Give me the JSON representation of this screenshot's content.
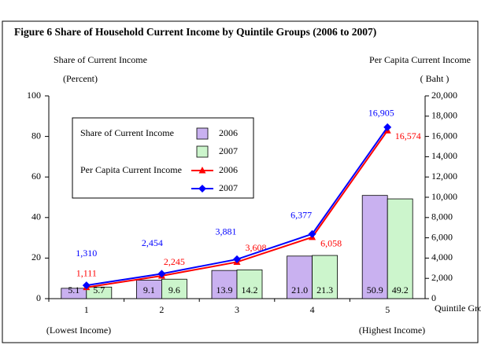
{
  "chart_data": {
    "type": "combo",
    "title": "Figure  6  Share of Household Current Income by Quintile Groups (2006  to 2007)",
    "y_label": "Share of Current Income",
    "y_unit": "(Percent)",
    "y2_label": "Per Capita Current Income",
    "y2_unit": "( Baht )",
    "x_label": "Quintile Groups",
    "annotations": [
      "(Lowest Income)",
      "(Highest Income)"
    ],
    "legend_groups": [
      "Share of Current Income",
      "Per Capita Current Income"
    ],
    "categories": [
      "1",
      "2",
      "3",
      "4",
      "5"
    ],
    "ylim": [
      0,
      100
    ],
    "yticks": [
      0,
      20,
      40,
      60,
      80,
      100
    ],
    "y2lim": [
      0,
      20000
    ],
    "y2ticks": [
      0,
      {
        "value": 2000,
        "label": "2,000"
      },
      {
        "value": 4000,
        "label": "4,000"
      },
      {
        "value": 6000,
        "label": "6,000"
      },
      {
        "value": 8000,
        "label": "8,000"
      },
      {
        "value": 10000,
        "label": "10,000"
      },
      {
        "value": 12000,
        "label": "12,000"
      },
      {
        "value": 14000,
        "label": "14,000"
      },
      {
        "value": 16000,
        "label": "16,000"
      },
      {
        "value": 18000,
        "label": "18,000"
      },
      {
        "value": 20000,
        "label": "20,000"
      }
    ],
    "series": [
      {
        "name": "2006",
        "type": "bar",
        "color": "#c9b1f0",
        "values": [
          5.1,
          9.1,
          13.9,
          21.0,
          50.9
        ],
        "value_labels": [
          "5.1",
          "9.1",
          "13.9",
          "21.0",
          "50.9"
        ]
      },
      {
        "name": "2007",
        "type": "bar",
        "color": "#ccf5cc",
        "values": [
          5.7,
          9.6,
          14.2,
          21.3,
          49.2
        ]
      },
      {
        "name": "2006",
        "type": "line",
        "axis": "y2",
        "color": "#ff0000",
        "marker": "triangle",
        "values": [
          1111,
          2245,
          3608,
          6058,
          16574
        ],
        "value_labels": [
          "1,111",
          "2,245",
          "3,608",
          "6,058",
          "16,574"
        ]
      },
      {
        "name": "2007",
        "type": "line",
        "axis": "y2",
        "color": "#0000ff",
        "marker": "diamond",
        "values": [
          1310,
          2454,
          3881,
          6377,
          16905
        ],
        "value_labels": [
          "1,310",
          "2,454",
          "3,881",
          "6,377",
          "16,905"
        ]
      }
    ]
  }
}
